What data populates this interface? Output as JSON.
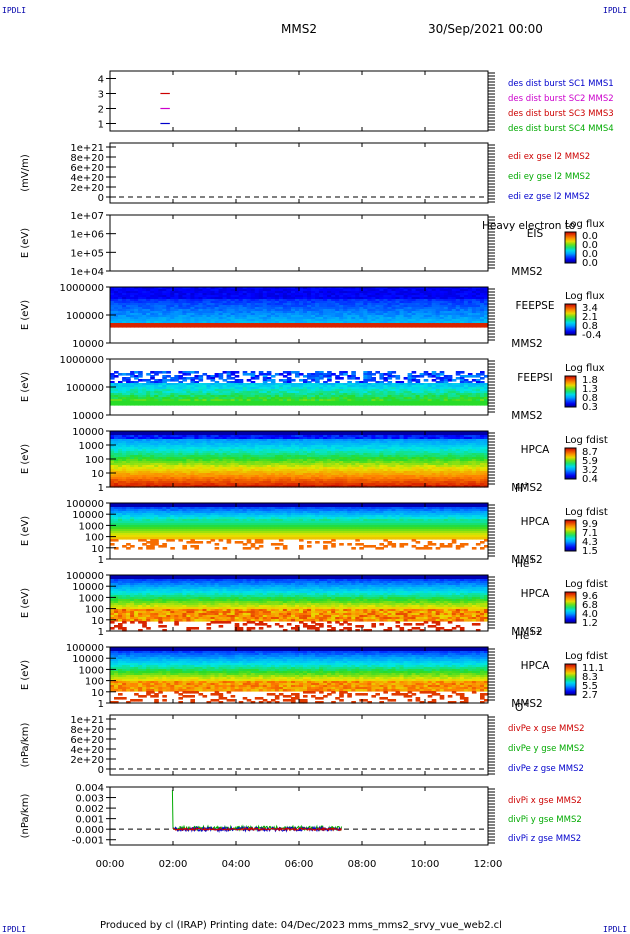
{
  "page": {
    "corner_label": "IPDLI",
    "spacecraft": "MMS2",
    "date_title": "30/Sep/2021 00:00",
    "footer": "Produced by cl (IRAP)   Printing date: 04/Dec/2023   mms_mms2_srvy_vue_web2.cl"
  },
  "chart_data": [
    {
      "type": "scatter",
      "id": "burst",
      "yticks": [
        "1",
        "2",
        "3",
        "4"
      ],
      "ylim": [
        0.5,
        4.5
      ],
      "segments": [
        {
          "y": 3,
          "x": [
            1.6,
            1.9
          ],
          "color": "#cc0000"
        },
        {
          "y": 2,
          "x": [
            1.6,
            1.9
          ],
          "color": "#cc00cc"
        },
        {
          "y": 1,
          "x": [
            1.6,
            1.9
          ],
          "color": "#0000cc"
        }
      ],
      "legend": [
        {
          "text": "des dist burst SC1 MMS1",
          "color": "#0000cc"
        },
        {
          "text": "des dist burst SC2 MMS2",
          "color": "#cc00cc"
        },
        {
          "text": "des dist burst SC3 MMS3",
          "color": "#cc0000"
        },
        {
          "text": "des dist burst SC4 MMS4",
          "color": "#00aa00"
        }
      ]
    },
    {
      "type": "line",
      "id": "edi",
      "ylabel": "(mV/m)",
      "yticks": [
        "0",
        "2e+20",
        "4e+20",
        "6e+20",
        "8e+20",
        "1e+21"
      ],
      "zero_line": true,
      "legend": [
        {
          "text": "edi ex gse l2 MMS2",
          "color": "#cc0000"
        },
        {
          "text": "edi ey gse l2 MMS2",
          "color": "#00aa00"
        },
        {
          "text": "edi ez gse l2 MMS2",
          "color": "#0000cc"
        }
      ]
    },
    {
      "type": "heatmap",
      "id": "eis",
      "ylabel": "E (eV)",
      "yticks": [
        "1e+04",
        "1e+05",
        "1e+06",
        "1e+07"
      ],
      "labels": [
        "EIS",
        "MMS2"
      ],
      "overlay_text": "Heavy electron to",
      "colorbar": {
        "title": "Log flux",
        "ticks": [
          "0.0",
          "0.0",
          "0.0",
          "0.0"
        ]
      }
    },
    {
      "type": "heatmap",
      "id": "feepse",
      "ylabel": "E (eV)",
      "yticks": [
        "10000",
        "100000",
        "1000000"
      ],
      "labels": [
        "FEEPSE",
        "MMS2"
      ],
      "colorbar": {
        "title": "Log flux",
        "ticks": [
          "3.4",
          "2.1",
          "0.8",
          "-0.4"
        ]
      }
    },
    {
      "type": "heatmap",
      "id": "feepsi",
      "ylabel": "E (eV)",
      "yticks": [
        "10000",
        "100000",
        "1000000"
      ],
      "labels": [
        "FEEPSI",
        "MMS2"
      ],
      "colorbar": {
        "title": "Log flux",
        "ticks": [
          "1.8",
          "1.3",
          "0.8",
          "0.3"
        ]
      }
    },
    {
      "type": "heatmap",
      "id": "hpca_h",
      "ylabel": "E (eV)",
      "yticks": [
        "1",
        "10",
        "100",
        "1000",
        "10000"
      ],
      "labels": [
        "HPCA",
        "MMS2"
      ],
      "species": {
        "base": "H",
        "sup": "+"
      },
      "colorbar": {
        "title": "Log fdist",
        "ticks": [
          "8.7",
          "5.9",
          "3.2",
          "0.4"
        ]
      }
    },
    {
      "type": "heatmap",
      "id": "hpca_he1",
      "ylabel": "E (eV)",
      "yticks": [
        "1",
        "10",
        "100",
        "1000",
        "10000",
        "100000"
      ],
      "labels": [
        "HPCA",
        "MMS2"
      ],
      "species": {
        "base": "He",
        "sup": "+"
      },
      "colorbar": {
        "title": "Log fdist",
        "ticks": [
          "9.9",
          "7.1",
          "4.3",
          "1.5"
        ]
      }
    },
    {
      "type": "heatmap",
      "id": "hpca_he2",
      "ylabel": "E (eV)",
      "yticks": [
        "1",
        "10",
        "100",
        "1000",
        "10000",
        "100000"
      ],
      "labels": [
        "HPCA",
        "MMS2"
      ],
      "species": {
        "base": "He",
        "sup": "++"
      },
      "colorbar": {
        "title": "Log fdist",
        "ticks": [
          "9.6",
          "6.8",
          "4.0",
          "1.2"
        ]
      }
    },
    {
      "type": "heatmap",
      "id": "hpca_o",
      "ylabel": "E (eV)",
      "yticks": [
        "1",
        "10",
        "100",
        "1000",
        "10000",
        "100000"
      ],
      "labels": [
        "HPCA",
        "MMS2"
      ],
      "species": {
        "base": "O",
        "sup": "+"
      },
      "colorbar": {
        "title": "Log fdist",
        "ticks": [
          "11.1",
          "8.3",
          "5.5",
          "2.7"
        ]
      }
    },
    {
      "type": "line",
      "id": "divpe",
      "ylabel": "(nPa/km)",
      "yticks": [
        "0",
        "2e+20",
        "4e+20",
        "6e+20",
        "8e+20",
        "1e+21"
      ],
      "zero_line": true,
      "legend": [
        {
          "text": "divPe x gse MMS2",
          "color": "#cc0000"
        },
        {
          "text": "divPe y gse MMS2",
          "color": "#00aa00"
        },
        {
          "text": "divPe z gse MMS2",
          "color": "#0000cc"
        }
      ]
    },
    {
      "type": "line",
      "id": "divpi",
      "ylabel": "(nPa/km)",
      "yticks": [
        "-0.001",
        "0.000",
        "0.001",
        "0.002",
        "0.003",
        "0.004"
      ],
      "ylim": [
        -0.0015,
        0.004
      ],
      "zero_line": true,
      "series": [
        {
          "color": "#00aa00",
          "spike": {
            "x": 1.98,
            "y": 0.0037
          },
          "x": [
            2.0,
            7.35
          ],
          "mean": 0.0001,
          "amp": 0.0002
        },
        {
          "color": "#0000cc",
          "x": [
            2.0,
            7.35
          ],
          "mean": 0.0,
          "amp": 0.00018
        },
        {
          "color": "#cc0000",
          "x": [
            2.0,
            7.35
          ],
          "mean": 0.0,
          "amp": 0.0001
        }
      ],
      "legend": [
        {
          "text": "divPi x gse MMS2",
          "color": "#cc0000"
        },
        {
          "text": "divPi y gse MMS2",
          "color": "#00aa00"
        },
        {
          "text": "divPi z gse MMS2",
          "color": "#0000cc"
        }
      ]
    }
  ],
  "xaxis": {
    "ticks": [
      "00:00",
      "02:00",
      "04:00",
      "06:00",
      "08:00",
      "10:00",
      "12:00"
    ],
    "range_hours": [
      0,
      12
    ]
  }
}
